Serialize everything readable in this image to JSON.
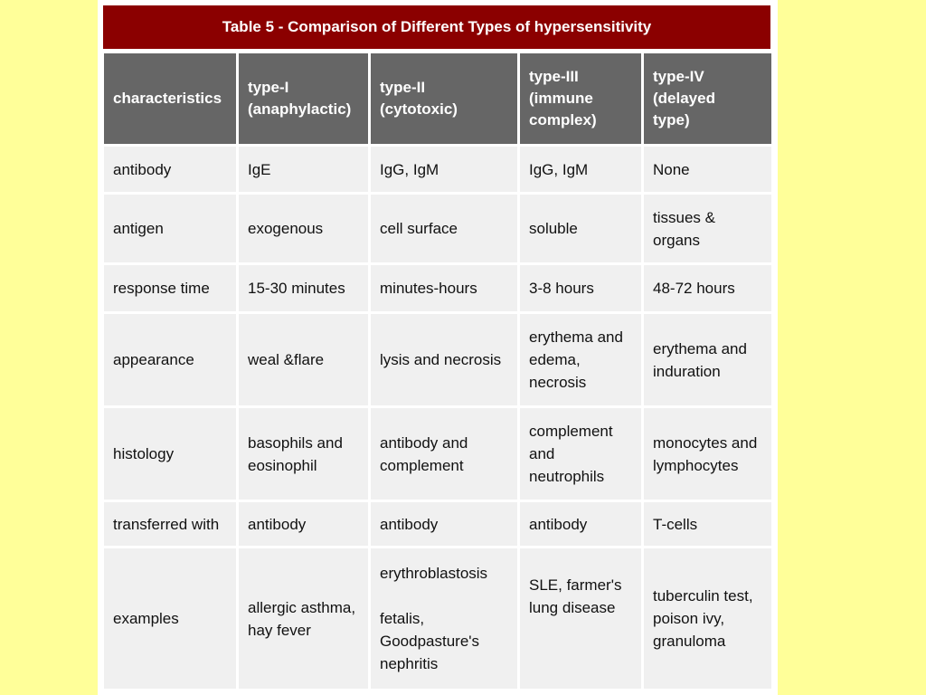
{
  "title": "Table 5  -  Comparison of Different Types of hypersensitivity",
  "header": {
    "characteristics": "characteristics",
    "type1": [
      "type-I",
      "(anaphylactic)"
    ],
    "type2": [
      "type-II",
      "(cytotoxic)"
    ],
    "type3": [
      "type-III",
      "(immune",
      "complex)"
    ],
    "type4": [
      "type-IV",
      "(delayed",
      "type)"
    ]
  },
  "rows": [
    {
      "label": "antibody",
      "t1": [
        "IgE"
      ],
      "t2": [
        "IgG, IgM"
      ],
      "t3": [
        "IgG, IgM"
      ],
      "t4": [
        "None"
      ]
    },
    {
      "label": "antigen",
      "t1": [
        "exogenous"
      ],
      "t2": [
        "cell surface"
      ],
      "t3": [
        "soluble"
      ],
      "t4": [
        "tissues &",
        "organs"
      ]
    },
    {
      "label": "response time",
      "t1": [
        "15-30 minutes"
      ],
      "t2": [
        "minutes-hours"
      ],
      "t3": [
        "3-8 hours"
      ],
      "t4": [
        "48-72 hours"
      ]
    },
    {
      "label": "appearance",
      "t1": [
        "weal &flare"
      ],
      "t2": [
        "lysis and necrosis"
      ],
      "t3": [
        "erythema and",
        "edema,",
        "necrosis"
      ],
      "t4": [
        "erythema and",
        "induration"
      ]
    },
    {
      "label": "histology",
      "t1": [
        "basophils and",
        "eosinophil"
      ],
      "t2": [
        "antibody and",
        "complement"
      ],
      "t3": [
        "complement",
        "and",
        "neutrophils"
      ],
      "t4": [
        "monocytes and",
        "lymphocytes"
      ]
    },
    {
      "label": "transferred with",
      "t1": [
        "antibody"
      ],
      "t2": [
        "antibody"
      ],
      "t3": [
        "antibody"
      ],
      "t4": [
        "T-cells"
      ]
    },
    {
      "label": "examples",
      "t1": [
        "allergic asthma,",
        "hay fever"
      ],
      "t2": [
        "erythroblastosis",
        "",
        "fetalis,",
        "Goodpasture's",
        "nephritis"
      ],
      "t3": [
        "SLE, farmer's",
        "lung disease",
        "",
        ""
      ],
      "t4": [
        "tuberculin test,",
        "poison ivy,",
        "granuloma"
      ]
    }
  ]
}
